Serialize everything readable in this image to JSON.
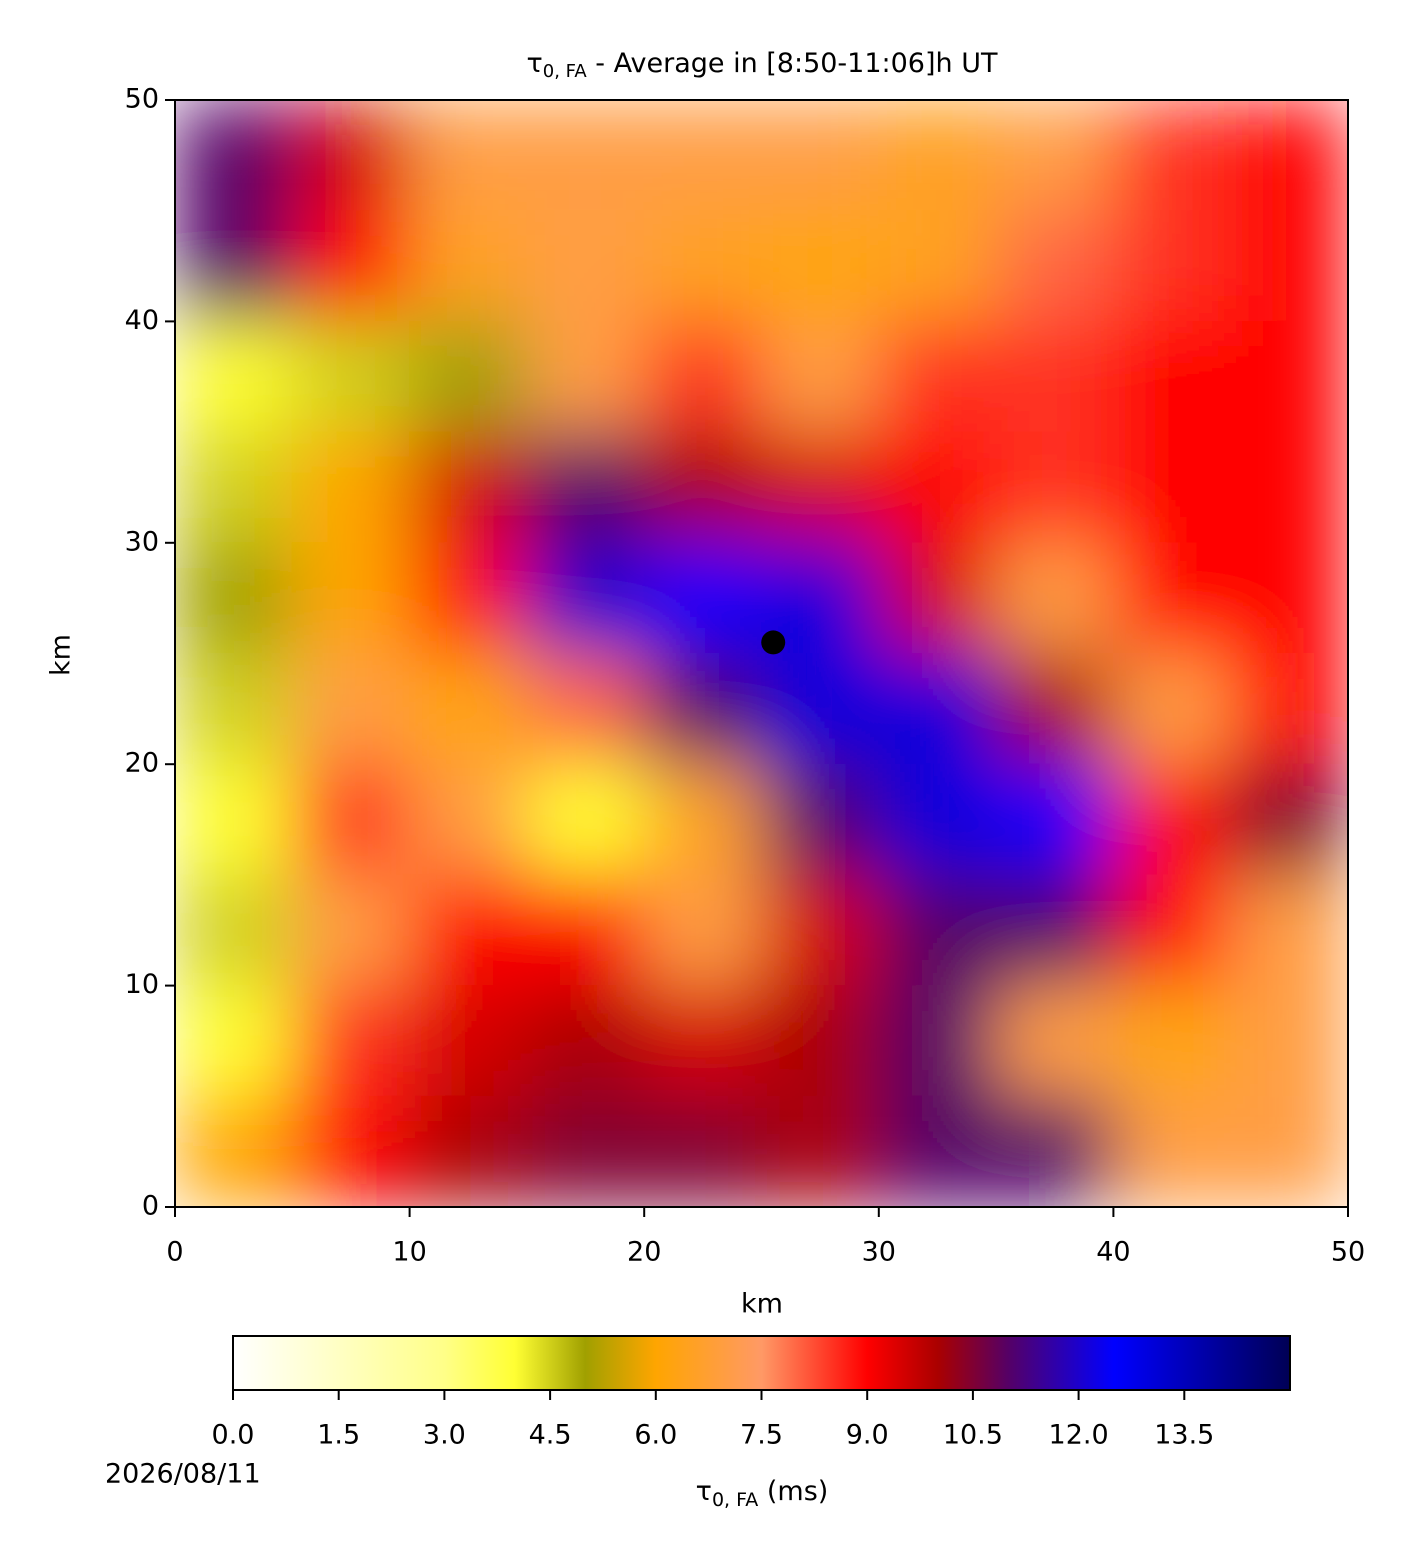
{
  "chart_data": {
    "type": "heatmap",
    "title": {
      "symbol": "τ",
      "subscript": "0, FA",
      "text": " - Average in [8:50-11:06]h UT"
    },
    "x_label": "km",
    "y_label": "km",
    "xlim": [
      0,
      50
    ],
    "xticks": [
      0,
      10,
      20,
      30,
      40,
      50
    ],
    "ylim": [
      0,
      50
    ],
    "yticks": [
      0,
      10,
      20,
      30,
      40,
      50
    ],
    "z": [
      [
        11,
        9.5,
        7,
        7,
        7,
        7,
        6.5,
        7,
        8.5,
        9
      ],
      [
        11,
        9,
        6.5,
        7,
        6.5,
        6,
        6.5,
        8,
        8.5,
        9
      ],
      [
        4,
        4.5,
        5,
        7,
        8.5,
        7,
        8.5,
        8.5,
        9,
        9
      ],
      [
        4.5,
        6,
        9.5,
        11,
        10,
        9.5,
        9,
        8.5,
        9,
        9
      ],
      [
        5,
        6,
        9,
        12,
        12.5,
        13,
        9.5,
        7,
        9,
        9
      ],
      [
        4.5,
        7,
        6,
        8,
        11,
        13,
        13,
        10,
        7,
        9
      ],
      [
        4,
        8.5,
        7,
        4,
        6.5,
        11,
        13,
        12.5,
        9,
        10.5
      ],
      [
        4.5,
        7,
        9,
        9,
        7,
        9.5,
        11,
        11,
        9,
        7
      ],
      [
        4,
        8.5,
        9.5,
        10,
        9.5,
        10,
        11,
        7,
        6,
        7
      ],
      [
        6,
        9,
        10,
        10.5,
        10.5,
        10,
        11,
        11,
        7,
        7
      ]
    ],
    "marker": {
      "x": 25.5,
      "y": 25.5,
      "color": "#000000"
    },
    "colorscale": [
      [
        0,
        "#ffffff"
      ],
      [
        3,
        "#ffff88"
      ],
      [
        4,
        "#ffff33"
      ],
      [
        5,
        "#a0a000"
      ],
      [
        6,
        "#ffa500"
      ],
      [
        7.5,
        "#ff9966"
      ],
      [
        9,
        "#ff0000"
      ],
      [
        10,
        "#aa0000"
      ],
      [
        11,
        "#550066"
      ],
      [
        12.5,
        "#0000ff"
      ],
      [
        15,
        "#000055"
      ]
    ],
    "clim": [
      0,
      15
    ],
    "cticks": [
      {
        "value": 0,
        "label": "0.0"
      },
      1.5,
      {
        "value": 3,
        "label": "3.0"
      },
      4.5,
      {
        "value": 6,
        "label": "6.0"
      },
      7.5,
      {
        "value": 9,
        "label": "9.0"
      },
      10.5,
      {
        "value": 12,
        "label": "12.0"
      },
      13.5
    ],
    "colorbar_label": {
      "symbol": "τ",
      "subscript": "0, FA",
      "text": " (ms)"
    },
    "date": "2026/08/11"
  }
}
